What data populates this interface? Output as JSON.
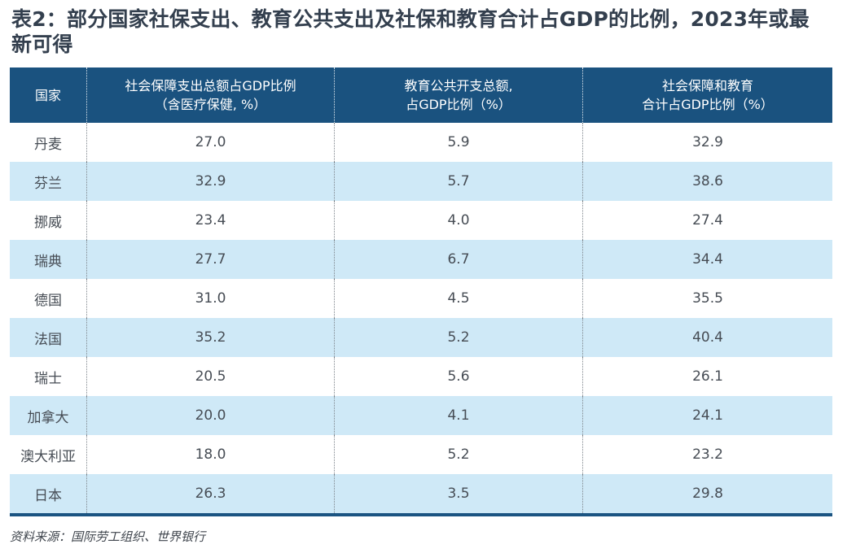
{
  "page": {
    "title": "表2：部分国家社保支出、教育公共支出及社保和教育合计占GDP的比例，2023年或最新可得",
    "source": "资料来源：国际劳工组织、世界银行"
  },
  "table": {
    "headers": {
      "country": "国家",
      "social_line1": "社会保障支出总额占GDP比例",
      "social_line2": "（含医疗保健, %）",
      "education_line1": "教育公共开支总额,",
      "education_line2": "占GDP比例（%）",
      "combined_line1": "社会保障和教育",
      "combined_line2": "合计占GDP比例（%）"
    },
    "rows": [
      {
        "country": "丹麦",
        "social": "27.0",
        "education": "5.9",
        "combined": "32.9"
      },
      {
        "country": "芬兰",
        "social": "32.9",
        "education": "5.7",
        "combined": "38.6"
      },
      {
        "country": "挪威",
        "social": "23.4",
        "education": "4.0",
        "combined": "27.4"
      },
      {
        "country": "瑞典",
        "social": "27.7",
        "education": "6.7",
        "combined": "34.4"
      },
      {
        "country": "德国",
        "social": "31.0",
        "education": "4.5",
        "combined": "35.5"
      },
      {
        "country": "法国",
        "social": "35.2",
        "education": "5.2",
        "combined": "40.4"
      },
      {
        "country": "瑞士",
        "social": "20.5",
        "education": "5.6",
        "combined": "26.1"
      },
      {
        "country": "加拿大",
        "social": "20.0",
        "education": "4.1",
        "combined": "24.1"
      },
      {
        "country": "澳大利亚",
        "social": "18.0",
        "education": "5.2",
        "combined": "23.2"
      },
      {
        "country": "日本",
        "social": "26.3",
        "education": "3.5",
        "combined": "29.8"
      }
    ]
  },
  "colors": {
    "header_bg": "#1a527f",
    "row_alt_bg": "#cfe9f7",
    "bottom_rule": "#1b5482",
    "title_text": "#333f4e",
    "body_text": "#464c54"
  },
  "chart_data": {
    "type": "table",
    "title": "表2：部分国家社保支出、教育公共支出及社保和教育合计占GDP的比例，2023年或最新可得",
    "columns": [
      "国家",
      "社会保障支出总额占GDP比例（含医疗保健, %）",
      "教育公共开支总额, 占GDP比例（%）",
      "社会保障和教育合计占GDP比例（%）"
    ],
    "rows": [
      [
        "丹麦",
        27.0,
        5.9,
        32.9
      ],
      [
        "芬兰",
        32.9,
        5.7,
        38.6
      ],
      [
        "挪威",
        23.4,
        4.0,
        27.4
      ],
      [
        "瑞典",
        27.7,
        6.7,
        34.4
      ],
      [
        "德国",
        31.0,
        4.5,
        35.5
      ],
      [
        "法国",
        35.2,
        5.2,
        40.4
      ],
      [
        "瑞士",
        20.5,
        5.6,
        26.1
      ],
      [
        "加拿大",
        20.0,
        4.1,
        24.1
      ],
      [
        "澳大利亚",
        18.0,
        5.2,
        23.2
      ],
      [
        "日本",
        26.3,
        3.5,
        29.8
      ]
    ],
    "source": "资料来源：国际劳工组织、世界银行"
  }
}
